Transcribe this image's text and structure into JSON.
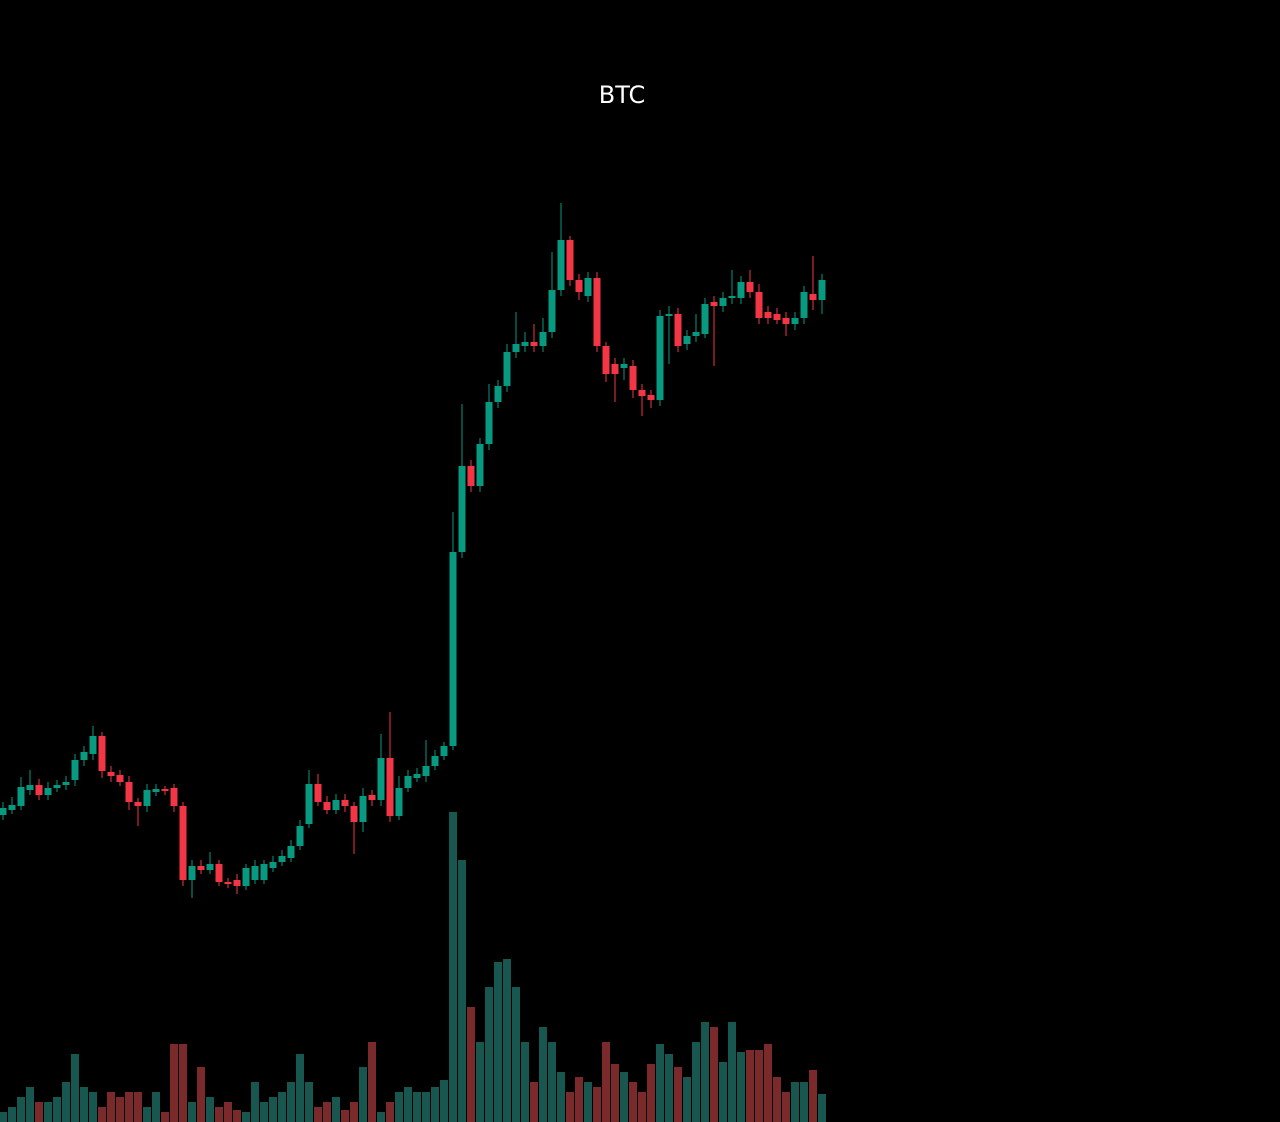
{
  "chart_data": {
    "type": "candlestick",
    "title": "BTC",
    "categories": [
      null,
      null,
      null,
      null,
      null,
      null,
      null,
      null,
      null,
      null,
      null,
      null,
      null,
      null,
      null,
      null,
      null,
      null,
      null,
      null,
      null,
      null,
      null,
      null,
      null,
      null,
      null,
      null,
      null,
      null,
      null,
      null,
      null,
      null,
      null,
      null,
      null,
      null,
      null,
      null,
      null,
      null,
      null,
      null,
      null,
      null,
      null,
      null,
      null,
      null,
      null,
      null,
      null,
      null,
      null,
      null,
      null,
      null,
      null,
      null,
      null,
      null,
      null,
      null,
      null,
      null,
      null,
      null,
      null,
      null,
      null,
      null,
      null,
      null,
      null,
      null,
      null,
      null,
      null,
      null,
      null,
      null,
      null,
      null,
      null,
      null,
      null,
      null,
      null,
      null,
      null,
      null
    ],
    "open": [
      307,
      312,
      316,
      332,
      337,
      327,
      334,
      337,
      342,
      362,
      368,
      386,
      350,
      347,
      340,
      320,
      316,
      330,
      333,
      334,
      316,
      242,
      256,
      252,
      258,
      240,
      242,
      236,
      242,
      242,
      254,
      260,
      264,
      276,
      298,
      338,
      320,
      312,
      322,
      316,
      300,
      327,
      322,
      364,
      306,
      334,
      344,
      346,
      356,
      366,
      376,
      570,
      656,
      636,
      678,
      720,
      736,
      770,
      776,
      780,
      776,
      790,
      832,
      882,
      842,
      826,
      844,
      776,
      758,
      754,
      756,
      732,
      727,
      722,
      806,
      808,
      778,
      786,
      788,
      820,
      816,
      824,
      824,
      840,
      830,
      810,
      808,
      804,
      798,
      804,
      828,
      822
    ],
    "high": [
      320,
      325,
      345,
      352,
      343,
      340,
      342,
      346,
      368,
      376,
      396,
      390,
      356,
      352,
      346,
      324,
      338,
      338,
      336,
      338,
      320,
      262,
      262,
      270,
      262,
      244,
      248,
      258,
      262,
      262,
      266,
      272,
      282,
      302,
      352,
      348,
      326,
      328,
      328,
      320,
      334,
      332,
      388,
      410,
      346,
      352,
      354,
      382,
      372,
      380,
      610,
      718,
      662,
      684,
      738,
      742,
      778,
      810,
      790,
      798,
      804,
      870,
      919,
      886,
      848,
      850,
      850,
      780,
      764,
      764,
      762,
      738,
      732,
      812,
      816,
      814,
      792,
      808,
      824,
      826,
      830,
      852,
      846,
      852,
      838,
      816,
      814,
      810,
      810,
      836,
      866,
      848
    ],
    "low": [
      302,
      308,
      312,
      327,
      322,
      322,
      330,
      332,
      336,
      356,
      362,
      344,
      340,
      336,
      312,
      296,
      310,
      326,
      327,
      310,
      236,
      224,
      248,
      248,
      236,
      234,
      228,
      232,
      238,
      238,
      250,
      256,
      260,
      272,
      294,
      316,
      308,
      308,
      310,
      268,
      290,
      316,
      316,
      300,
      302,
      330,
      340,
      340,
      352,
      362,
      372,
      564,
      630,
      630,
      672,
      714,
      730,
      764,
      770,
      770,
      770,
      784,
      826,
      836,
      822,
      820,
      770,
      740,
      720,
      742,
      724,
      706,
      714,
      716,
      758,
      770,
      772,
      780,
      784,
      756,
      810,
      818,
      818,
      824,
      798,
      798,
      798,
      786,
      792,
      798,
      812,
      808
    ],
    "close": [
      314,
      317,
      335,
      337,
      327,
      334,
      337,
      340,
      362,
      370,
      386,
      351,
      346,
      340,
      320,
      316,
      332,
      333,
      331,
      316,
      242,
      256,
      252,
      258,
      240,
      238,
      236,
      254,
      256,
      258,
      260,
      266,
      276,
      296,
      338,
      320,
      312,
      322,
      316,
      300,
      326,
      322,
      364,
      306,
      334,
      346,
      348,
      356,
      366,
      376,
      570,
      656,
      636,
      678,
      720,
      736,
      770,
      778,
      780,
      776,
      790,
      832,
      882,
      842,
      830,
      844,
      776,
      748,
      748,
      758,
      732,
      726,
      722,
      806,
      808,
      776,
      786,
      790,
      818,
      816,
      824,
      826,
      840,
      830,
      804,
      804,
      802,
      798,
      804,
      830,
      822,
      842
    ],
    "volume": [
      10,
      15,
      25,
      35,
      20,
      20,
      25,
      40,
      68,
      35,
      30,
      15,
      30,
      25,
      30,
      30,
      15,
      30,
      10,
      78,
      78,
      20,
      55,
      25,
      15,
      20,
      12,
      10,
      40,
      20,
      25,
      30,
      40,
      68,
      40,
      15,
      20,
      25,
      12,
      20,
      55,
      80,
      10,
      20,
      30,
      35,
      30,
      30,
      35,
      42,
      310,
      262,
      115,
      80,
      135,
      160,
      163,
      135,
      80,
      40,
      95,
      80,
      50,
      30,
      45,
      40,
      35,
      80,
      58,
      50,
      40,
      30,
      58,
      78,
      68,
      55,
      45,
      80,
      100,
      95,
      60,
      100,
      70,
      72,
      72,
      78,
      45,
      30,
      40,
      40,
      52,
      28
    ],
    "ylim": [
      0,
      1000
    ],
    "y2lim": [
      0,
      1000
    ],
    "up_color": "#089981",
    "down_color": "#f23645",
    "volume_up_color": "#17574f",
    "volume_down_color": "#7a2a2a",
    "grid": false
  }
}
